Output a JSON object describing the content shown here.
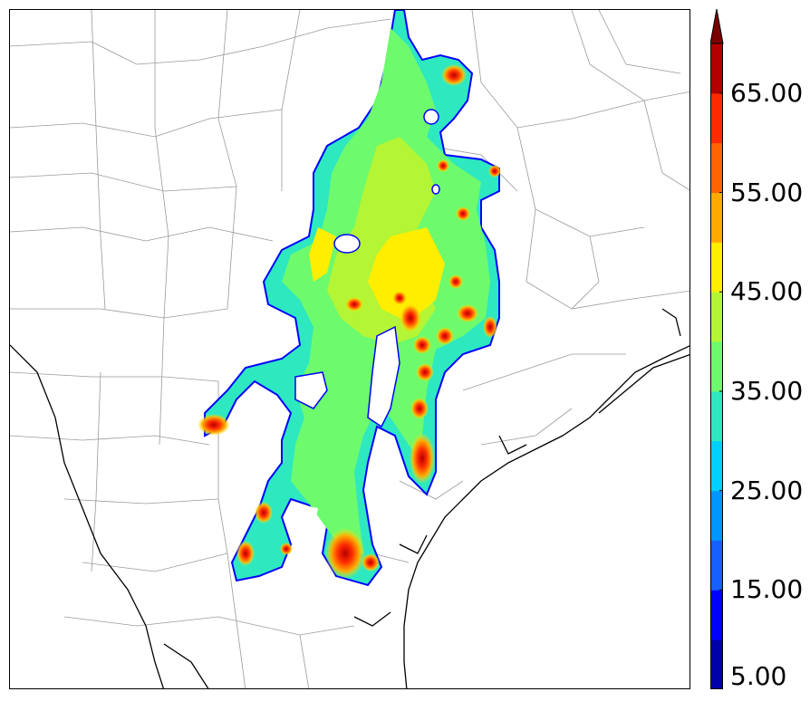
{
  "colorbar": {
    "labels": [
      "5.00",
      "15.00",
      "25.00",
      "35.00",
      "45.00",
      "55.00",
      "65.00"
    ],
    "levels": [
      5,
      10,
      15,
      20,
      25,
      30,
      35,
      40,
      45,
      50,
      55,
      60,
      65,
      70
    ],
    "colors": [
      "#0000aa",
      "#0000ff",
      "#1560ff",
      "#0095ff",
      "#00d0ff",
      "#2ee8c0",
      "#6dfa6d",
      "#b4f535",
      "#ffee00",
      "#ffaa00",
      "#ff6400",
      "#ff2a00",
      "#b40000"
    ],
    "extend_color": "#7a0000"
  },
  "map": {
    "colors": {
      "county_lines": "#9a9a9a",
      "coastline": "#000000",
      "outline": "#0000ff"
    }
  }
}
